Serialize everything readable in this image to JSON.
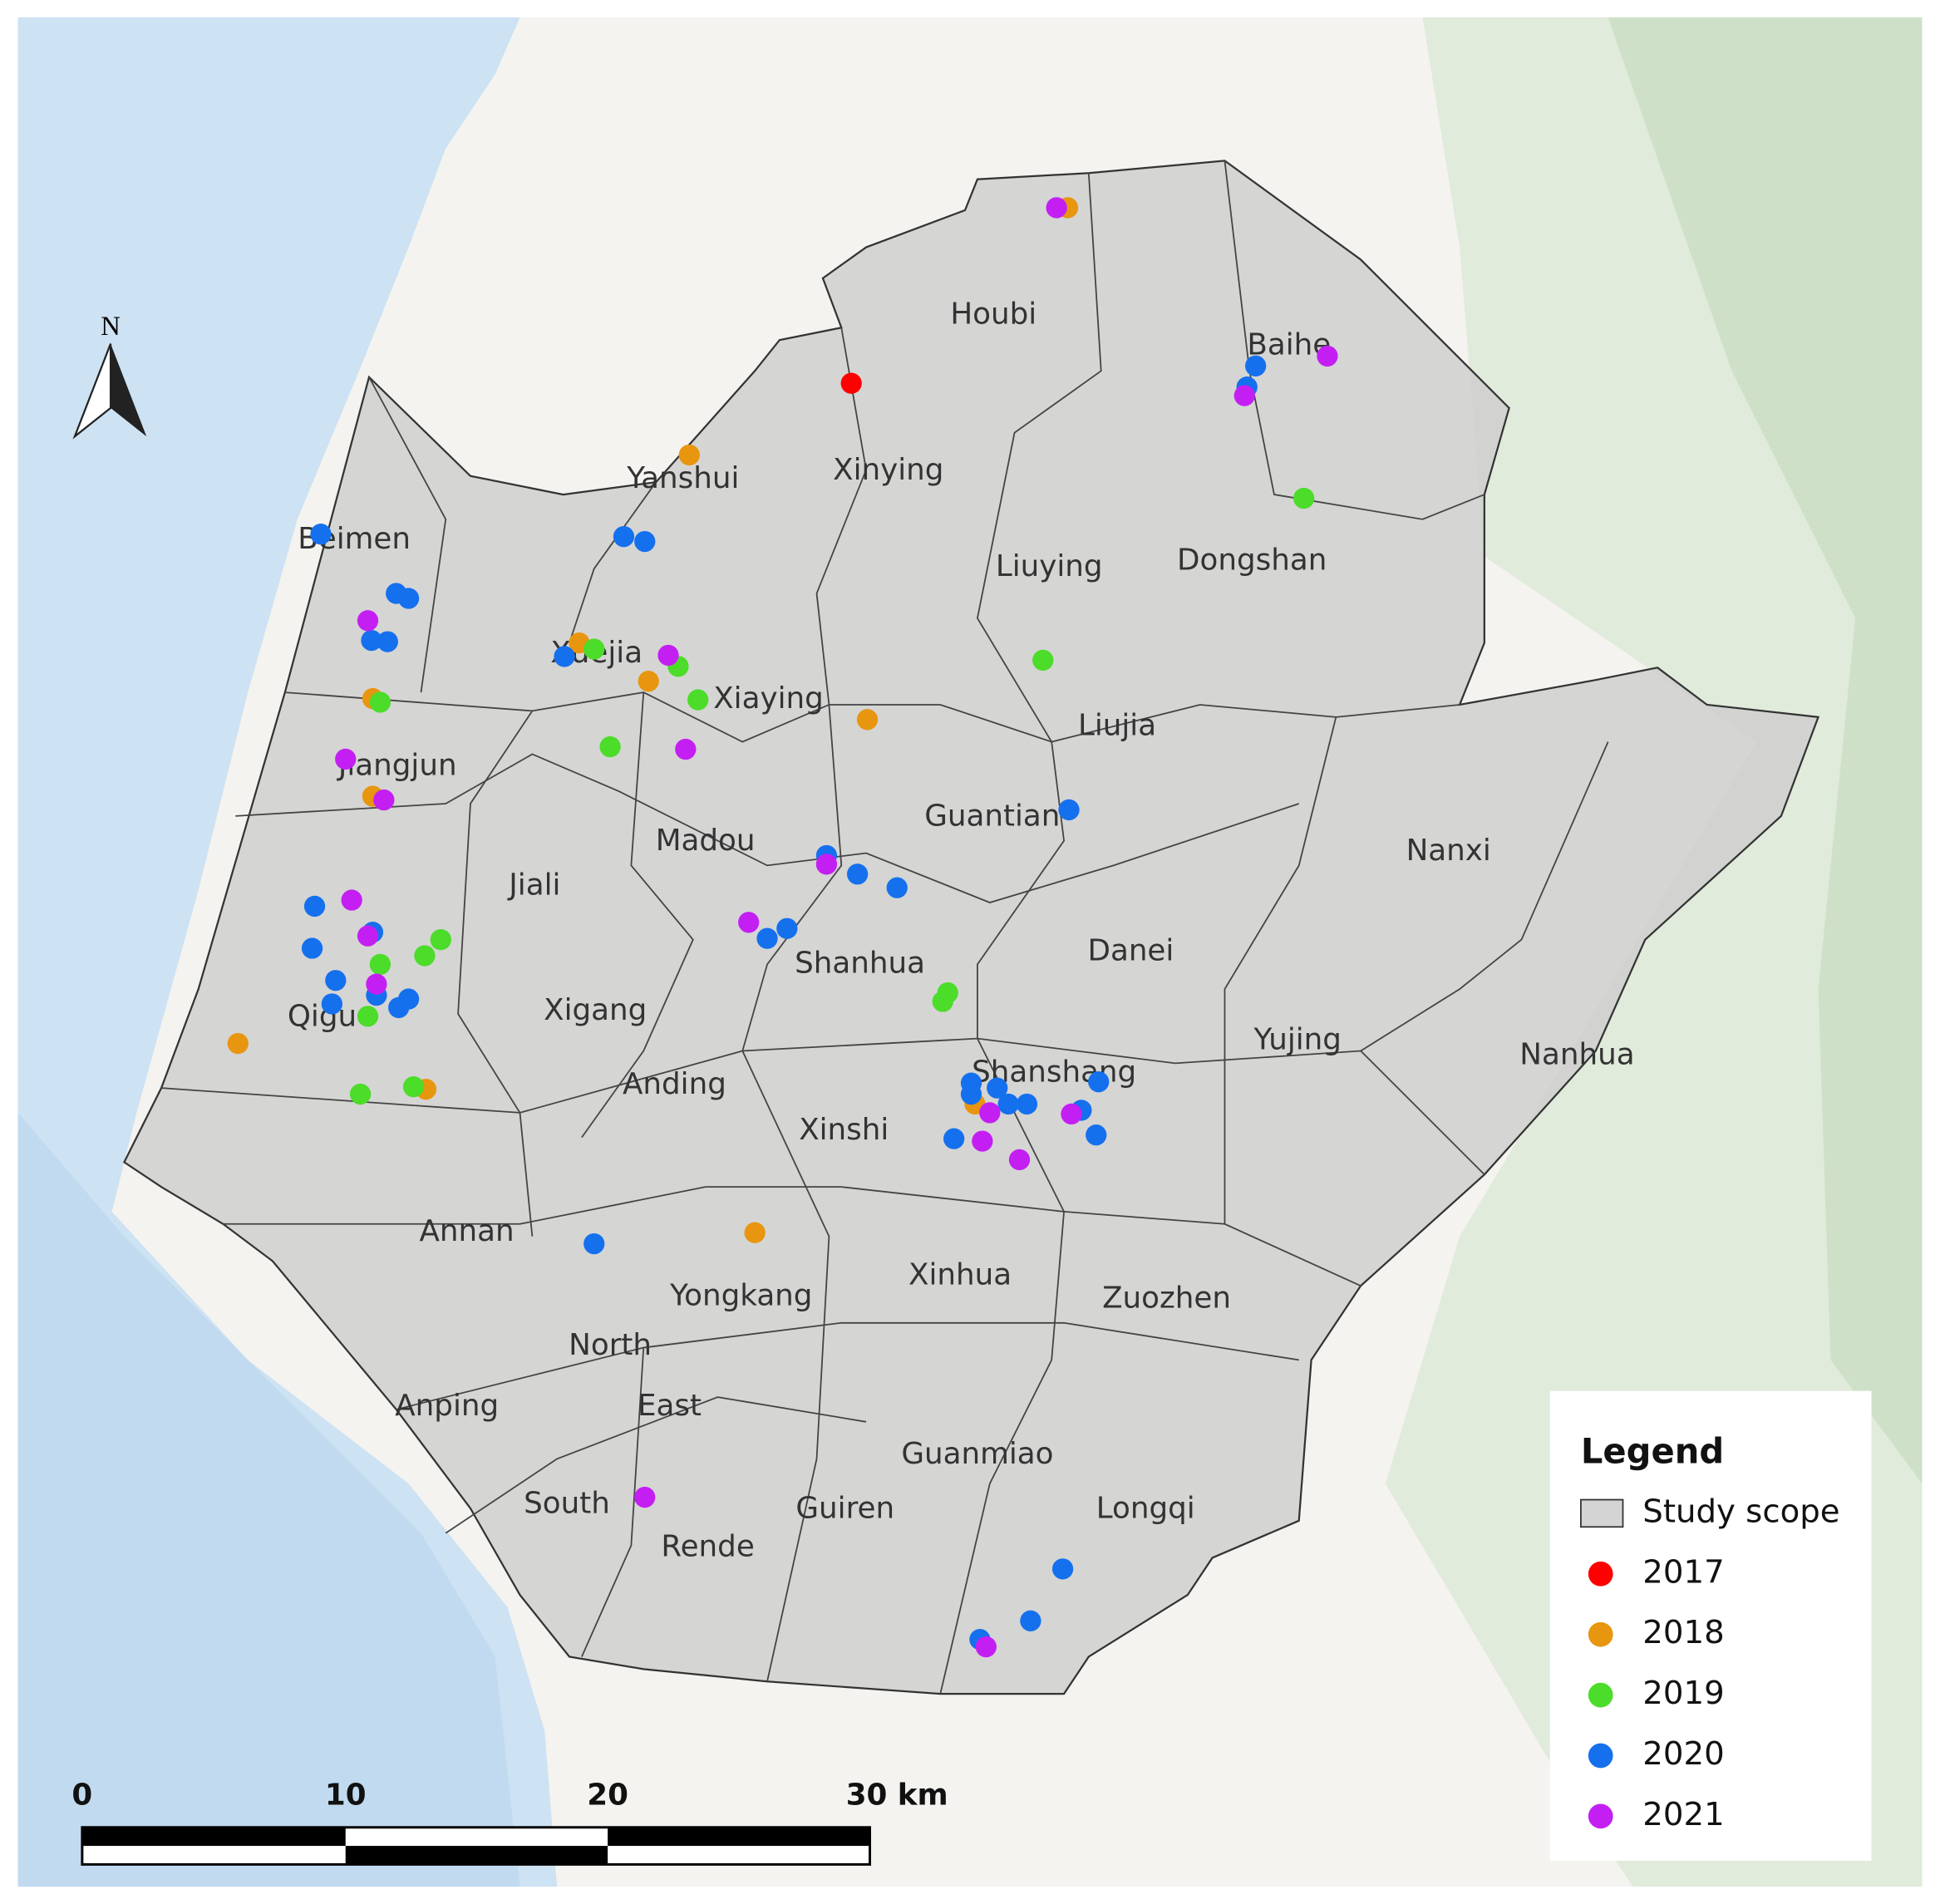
{
  "map": {
    "north": "N",
    "districts": [
      "Houbi",
      "Baihe",
      "Yanshui",
      "Xinying",
      "Beimen",
      "Liuying",
      "Dongshan",
      "Xuejia",
      "Xiaying",
      "Liujia",
      "Jiangjun",
      "Guantian",
      "Madou",
      "Nanxi",
      "Jiali",
      "Danei",
      "Shanhua",
      "Xigang",
      "Qigu",
      "Yujing",
      "Nanhua",
      "Shanshang",
      "Anding",
      "Xinshi",
      "Annan",
      "Xinhua",
      "Yongkang",
      "Zuozhen",
      "North",
      "Anping",
      "East",
      "Guanmiao",
      "South",
      "Guiren",
      "Longqi",
      "Rende"
    ],
    "legend": {
      "title": "Legend",
      "items": [
        {
          "label": "Study scope",
          "color": "#d4d4d4"
        },
        {
          "label": "2017",
          "color": "#ff0000"
        },
        {
          "label": "2018",
          "color": "#e8960f"
        },
        {
          "label": "2019",
          "color": "#4cdc2a"
        },
        {
          "label": "2020",
          "color": "#1570ee"
        },
        {
          "label": "2021",
          "color": "#c41ff2"
        }
      ]
    },
    "scale_bar": {
      "labels": [
        "0",
        "10",
        "20",
        "30 km"
      ]
    }
  }
}
